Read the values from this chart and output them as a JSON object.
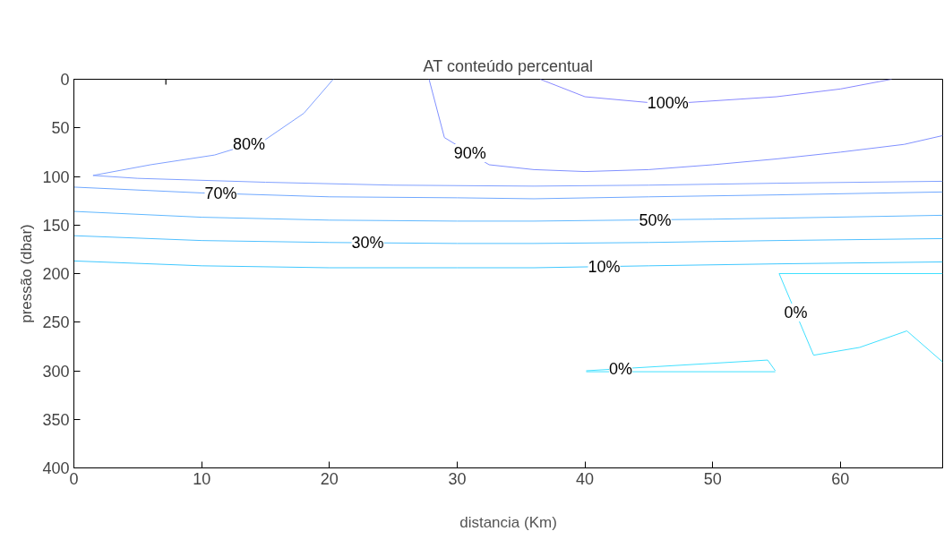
{
  "chart_data": {
    "type": "line",
    "title": "AT conteúdo percentual",
    "xlabel": "distancia (Km)",
    "ylabel": "pressão (dbar)",
    "xlim": [
      0,
      68
    ],
    "xticks": [
      0,
      10,
      20,
      30,
      40,
      50,
      60
    ],
    "ylim": [
      400,
      0
    ],
    "yticks": [
      0,
      50,
      100,
      150,
      200,
      250,
      300,
      350,
      400
    ],
    "series": [
      {
        "color": "#8888ff",
        "x": [
          36.5,
          40,
          45,
          48,
          55,
          60,
          64
        ],
        "values": [
          0,
          18,
          24,
          24,
          18,
          10,
          0
        ]
      },
      {
        "color": "#8090ff",
        "x": [
          27.8,
          29,
          32.5,
          36,
          40,
          45,
          50,
          55,
          60,
          65,
          68
        ],
        "values": [
          0,
          60,
          88,
          93,
          95,
          93,
          88,
          82,
          75,
          67,
          58
        ]
      },
      {
        "color": "#80a0ff",
        "x": [
          20.3,
          18,
          15,
          11,
          6,
          1.5,
          5,
          15,
          25,
          36,
          45,
          55,
          68
        ],
        "values": [
          0,
          35,
          62,
          78,
          88,
          99,
          102,
          106,
          109,
          110,
          109,
          107,
          105
        ]
      },
      {
        "color": "#70a8ff",
        "x": [
          0,
          10,
          20,
          30,
          36,
          45,
          55,
          68
        ],
        "values": [
          111,
          117,
          121,
          122,
          123,
          121,
          119,
          116
        ]
      },
      {
        "color": "#60b8ff",
        "x": [
          0,
          10,
          20,
          30,
          36,
          50,
          55,
          68
        ],
        "values": [
          136,
          142,
          145,
          146,
          146,
          144,
          143,
          140
        ]
      },
      {
        "color": "#50c0ff",
        "x": [
          0,
          10,
          20,
          30,
          36,
          45,
          55,
          68
        ],
        "values": [
          161,
          166,
          168,
          169,
          169,
          168,
          166,
          164
        ]
      },
      {
        "color": "#40c8ff",
        "x": [
          0,
          10,
          20,
          30,
          36,
          45,
          55,
          68
        ],
        "values": [
          187,
          192,
          194,
          194,
          194,
          192,
          190,
          188
        ]
      },
      {
        "color": "#40e0ff",
        "x": [
          40.1,
          54.3,
          54.9
        ],
        "values": [
          300,
          289,
          300
        ]
      },
      {
        "color": "#40e0ff",
        "x": [
          40.1,
          54.9
        ],
        "values": [
          301,
          301
        ]
      },
      {
        "color": "#40e0ff",
        "x": [
          55.2,
          68
        ],
        "values": [
          200,
          200
        ]
      },
      {
        "color": "#40e0ff",
        "x": [
          55.2,
          57.9,
          61.5,
          65.2,
          68
        ],
        "values": [
          200,
          284,
          276,
          259,
          291
        ]
      },
      {
        "type": "scatter",
        "marker": "cross",
        "color": "#000000",
        "x": [
          7.2
        ],
        "values": [
          0
        ]
      }
    ],
    "annotations": [
      {
        "text": "100%",
        "x": 46.5,
        "y": 24
      },
      {
        "text": "90%",
        "x": 31,
        "y": 76
      },
      {
        "text": "80%",
        "x": 13.7,
        "y": 67
      },
      {
        "text": "70%",
        "x": 11.5,
        "y": 117.5
      },
      {
        "text": "50%",
        "x": 45.5,
        "y": 145
      },
      {
        "text": "30%",
        "x": 23,
        "y": 168
      },
      {
        "text": "10%",
        "x": 41.5,
        "y": 193
      },
      {
        "text": "0%",
        "x": 56.5,
        "y": 240
      },
      {
        "text": "0%",
        "x": 42.8,
        "y": 298
      }
    ]
  }
}
